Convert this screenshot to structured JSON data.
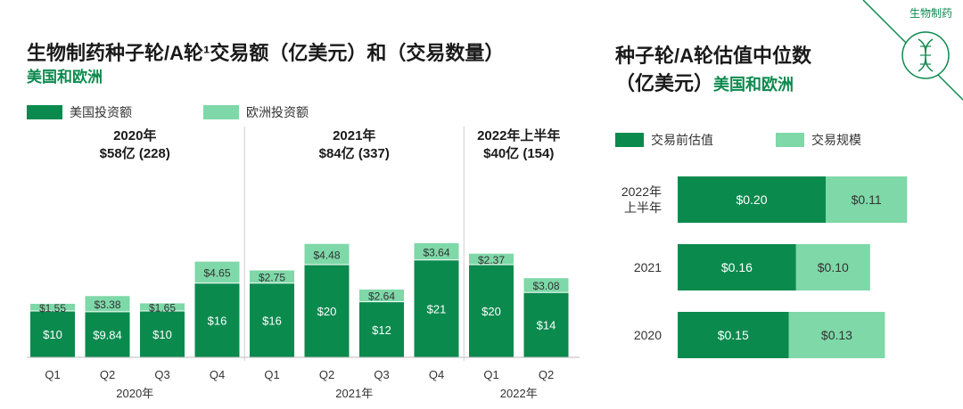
{
  "colors": {
    "dark": "#0b8a4e",
    "light": "#7ed8a8",
    "accent": "#0b8a4e",
    "divider": "#cfcfcf"
  },
  "corner": {
    "label": "生物制药",
    "icon": "dna-icon"
  },
  "left": {
    "title": "生物制药种子轮/A轮¹交易额（亿美元）和（交易数量）",
    "subtitle": "美国和欧洲",
    "legend": {
      "series1": "美国投资额",
      "series2": "欧洲投资额"
    }
  },
  "right": {
    "title_line1": "种子轮/A轮估值中位数",
    "title_line2": "（亿美元）",
    "title_line2_green": "美国和欧洲",
    "legend": {
      "series1": "交易前估值",
      "series2": "交易规模"
    }
  },
  "chart_data": [
    {
      "type": "bar",
      "stacked": true,
      "categories": [
        "Q1",
        "Q2",
        "Q3",
        "Q4",
        "Q1",
        "Q2",
        "Q3",
        "Q4",
        "Q1",
        "Q2"
      ],
      "category_groups": [
        {
          "label": "2020年",
          "span": [
            0,
            3
          ],
          "header": "2020年",
          "summary": "$58亿 (228)"
        },
        {
          "label": "2021年",
          "span": [
            4,
            7
          ],
          "header": "2021年",
          "summary": "$84亿 (337)"
        },
        {
          "label": "2022年",
          "span": [
            8,
            9
          ],
          "header": "2022年上半年",
          "summary": "$40亿 (154)"
        }
      ],
      "series": [
        {
          "name": "美国投资额",
          "values": [
            10,
            9.84,
            10,
            16,
            16,
            20,
            12,
            21,
            20,
            14
          ],
          "labels": [
            "$10",
            "$9.84",
            "$10",
            "$16",
            "$16",
            "$20",
            "$12",
            "$21",
            "$20",
            "$14"
          ]
        },
        {
          "name": "欧洲投资额",
          "values": [
            1.55,
            3.38,
            1.65,
            4.65,
            2.75,
            4.48,
            2.64,
            3.64,
            2.37,
            3.08
          ],
          "labels": [
            "$1.55",
            "$3.38",
            "$1.65",
            "$4.65",
            "$2.75",
            "$4.48",
            "$2.64",
            "$3.64",
            "$2.37",
            "$3.08"
          ]
        }
      ],
      "ylim": [
        0,
        25
      ]
    },
    {
      "type": "bar",
      "orientation": "horizontal",
      "stacked": true,
      "categories": [
        [
          "2022年",
          "上半年"
        ],
        [
          "2021"
        ],
        [
          "2020"
        ]
      ],
      "series": [
        {
          "name": "交易前估值",
          "values": [
            0.2,
            0.16,
            0.15
          ],
          "labels": [
            "$0.20",
            "$0.16",
            "$0.15"
          ]
        },
        {
          "name": "交易规模",
          "values": [
            0.11,
            0.1,
            0.13
          ],
          "labels": [
            "$0.11",
            "$0.10",
            "$0.13"
          ]
        }
      ],
      "xlim": [
        0,
        0.31
      ]
    }
  ]
}
